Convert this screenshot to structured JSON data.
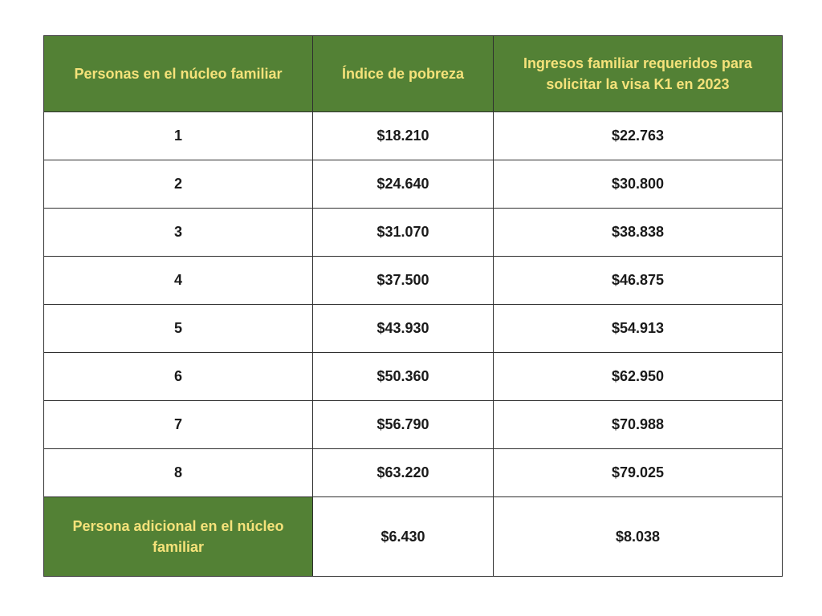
{
  "colors": {
    "header_bg": "#538135",
    "header_text": "#f5e27a",
    "border": "#2f2f2f",
    "body_text": "#1a1a1a"
  },
  "table": {
    "headers": [
      "Personas en el núcleo familiar",
      "Índice de pobreza",
      "Ingresos familiar requeridos para solicitar la visa K1 en 2023"
    ],
    "rows": [
      [
        "1",
        "$18.210",
        "$22.763"
      ],
      [
        "2",
        "$24.640",
        "$30.800"
      ],
      [
        "3",
        "$31.070",
        "$38.838"
      ],
      [
        "4",
        "$37.500",
        "$46.875"
      ],
      [
        "5",
        "$43.930",
        "$54.913"
      ],
      [
        "6",
        "$50.360",
        "$62.950"
      ],
      [
        "7",
        "$56.790",
        "$70.988"
      ],
      [
        "8",
        "$63.220",
        "$79.025"
      ]
    ],
    "extra_row": [
      "Persona adicional en el núcleo familiar",
      "$6.430",
      "$8.038"
    ]
  }
}
